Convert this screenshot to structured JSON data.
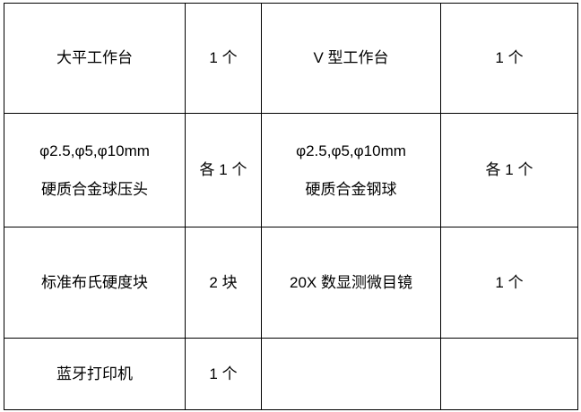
{
  "colors": {
    "background": "#ffffff",
    "border": "#000000",
    "text": "#000000"
  },
  "table": {
    "rows": [
      {
        "cells": [
          {
            "lines": [
              "大平工作台"
            ]
          },
          {
            "lines": [
              "1 个"
            ]
          },
          {
            "lines": [
              "V 型工作台"
            ]
          },
          {
            "lines": [
              "1 个"
            ]
          }
        ]
      },
      {
        "cells": [
          {
            "lines": [
              "φ2.5,φ5,φ10mm",
              "硬质合金球压头"
            ]
          },
          {
            "lines": [
              "各 1 个"
            ]
          },
          {
            "lines": [
              "φ2.5,φ5,φ10mm",
              "硬质合金钢球"
            ]
          },
          {
            "lines": [
              "各 1 个"
            ]
          }
        ]
      },
      {
        "cells": [
          {
            "lines": [
              "标准布氏硬度块"
            ]
          },
          {
            "lines": [
              "2 块"
            ]
          },
          {
            "lines": [
              "20X 数显测微目镜"
            ]
          },
          {
            "lines": [
              "1 个"
            ]
          }
        ]
      },
      {
        "cells": [
          {
            "lines": [
              "蓝牙打印机"
            ]
          },
          {
            "lines": [
              "1 个"
            ]
          },
          {
            "lines": [
              ""
            ]
          },
          {
            "lines": [
              ""
            ]
          }
        ]
      }
    ]
  }
}
